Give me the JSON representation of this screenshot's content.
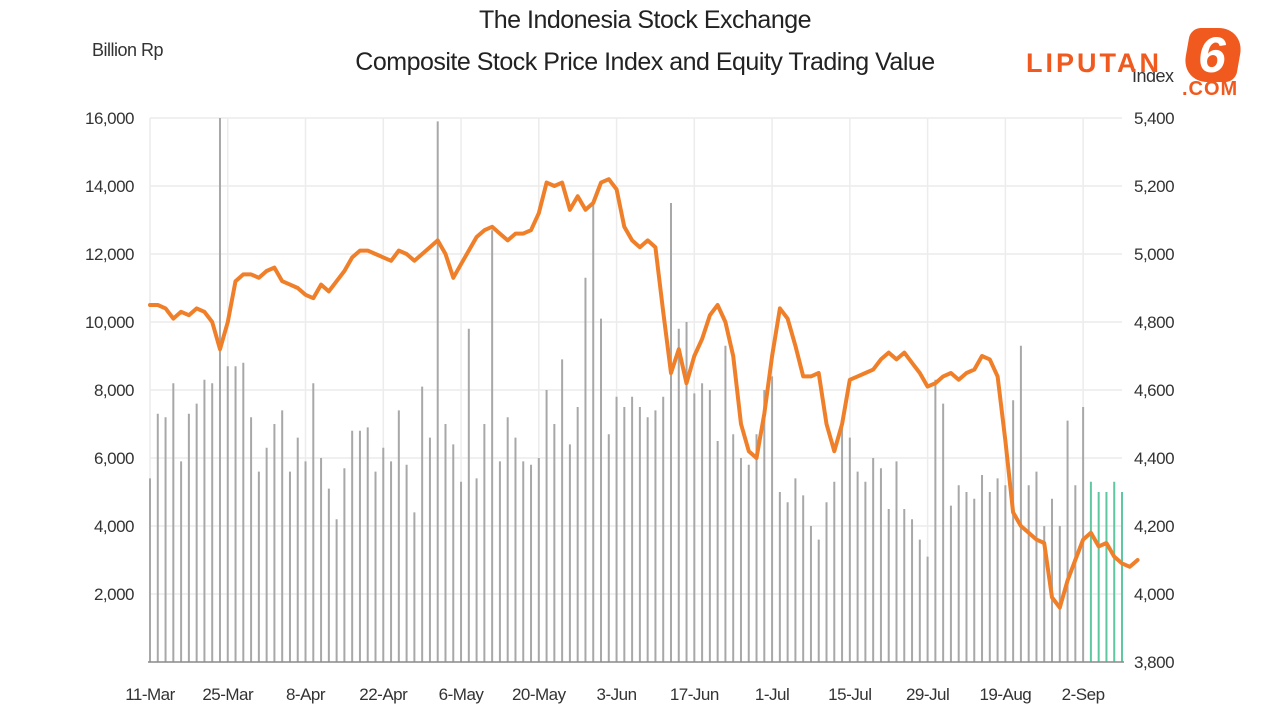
{
  "chart_data": {
    "type": "bar+line",
    "title": "The Indonesia Stock Exchange",
    "subtitle": "Composite Stock Price Index and Equity Trading Value",
    "ylabel_left": "Billion Rp",
    "ylabel_right": "Index",
    "left_axis": {
      "min": 0,
      "max": 16000,
      "ticks": [
        "2,000",
        "4,000",
        "6,000",
        "8,000",
        "10,000",
        "12,000",
        "14,000",
        "16,000"
      ],
      "tick_values": [
        2000,
        4000,
        6000,
        8000,
        10000,
        12000,
        14000,
        16000
      ]
    },
    "right_axis": {
      "min": 3800,
      "max": 5400,
      "ticks": [
        "3,800",
        "4,000",
        "4,200",
        "4,400",
        "4,600",
        "4,800",
        "5,000",
        "5,200",
        "5,400"
      ],
      "tick_values": [
        3800,
        4000,
        4200,
        4400,
        4600,
        4800,
        5000,
        5200,
        5400
      ]
    },
    "x_labels": [
      "11-Mar",
      "25-Mar",
      "8-Apr",
      "22-Apr",
      "6-May",
      "20-May",
      "3-Jun",
      "17-Jun",
      "1-Jul",
      "15-Jul",
      "29-Jul",
      "19-Aug",
      "2-Sep"
    ],
    "x_label_positions": [
      0,
      10,
      20,
      30,
      40,
      50,
      60,
      70,
      80,
      90,
      100,
      110,
      120
    ],
    "grid": true,
    "series": [
      {
        "kind": "bar",
        "axis": "left",
        "color": "#a8a8a8",
        "highlight_color": "#5fc8a0",
        "highlight_from_index": 121,
        "values": [
          5400,
          7300,
          7200,
          8200,
          5900,
          7300,
          7600,
          8300,
          8200,
          16000,
          8700,
          8700,
          8800,
          7200,
          5600,
          6300,
          7000,
          7400,
          5600,
          6600,
          5900,
          8200,
          6000,
          5100,
          4200,
          5700,
          6800,
          6800,
          6900,
          5600,
          6300,
          5900,
          7400,
          5800,
          4400,
          8100,
          6600,
          15900,
          7000,
          6400,
          5300,
          9800,
          5400,
          7000,
          12700,
          5900,
          7200,
          6600,
          5900,
          5800,
          6000,
          8000,
          7000,
          8900,
          6400,
          7500,
          11300,
          13500,
          10100,
          6700,
          7800,
          7500,
          7800,
          7500,
          7200,
          7400,
          7800,
          13500,
          9800,
          10000,
          7900,
          8200,
          8000,
          6500,
          9300,
          6700,
          6000,
          5800,
          6700,
          8000,
          8400,
          5000,
          4700,
          5400,
          4900,
          4000,
          3600,
          4700,
          5300,
          6900,
          6600,
          5600,
          5300,
          6000,
          5700,
          4500,
          5900,
          4500,
          4200,
          3600,
          3100,
          8300,
          7600,
          4600,
          5200,
          5000,
          4800,
          5500,
          5000,
          5400,
          5200,
          7700,
          9300,
          5200,
          5600,
          4000,
          4800,
          4000,
          7100,
          5200,
          7500,
          5300,
          5000,
          5000,
          5300,
          5000
        ],
        "values_note": ""
      },
      {
        "kind": "line",
        "axis": "right",
        "color": "#f07f2a",
        "values": [
          4850,
          4850,
          4840,
          4810,
          4830,
          4820,
          4840,
          4830,
          4800,
          4720,
          4800,
          4920,
          4940,
          4940,
          4930,
          4950,
          4960,
          4920,
          4910,
          4900,
          4880,
          4870,
          4910,
          4890,
          4920,
          4950,
          4990,
          5010,
          5010,
          5000,
          4990,
          4980,
          5010,
          5000,
          4980,
          5000,
          5020,
          5040,
          5000,
          4930,
          4970,
          5010,
          5050,
          5070,
          5080,
          5060,
          5040,
          5060,
          5060,
          5070,
          5120,
          5210,
          5200,
          5210,
          5130,
          5170,
          5130,
          5150,
          5210,
          5220,
          5190,
          5080,
          5040,
          5020,
          5040,
          5020,
          4830,
          4650,
          4720,
          4620,
          4700,
          4750,
          4820,
          4850,
          4800,
          4700,
          4500,
          4420,
          4400,
          4530,
          4700,
          4840,
          4810,
          4730,
          4640,
          4640,
          4650,
          4500,
          4420,
          4500,
          4630,
          4640,
          4650,
          4660,
          4690,
          4710,
          4690,
          4710,
          4680,
          4650,
          4610,
          4620,
          4640,
          4650,
          4630,
          4650,
          4660,
          4700,
          4690,
          4640,
          4450,
          4240,
          4200,
          4180,
          4160,
          4150,
          3990,
          3960,
          4040,
          4100,
          4160,
          4180,
          4140,
          4150,
          4110,
          4090,
          4080,
          4100
        ]
      }
    ]
  },
  "logo": {
    "brand": "LIPUTAN",
    "digit": "6",
    "suffix": ".COM"
  }
}
